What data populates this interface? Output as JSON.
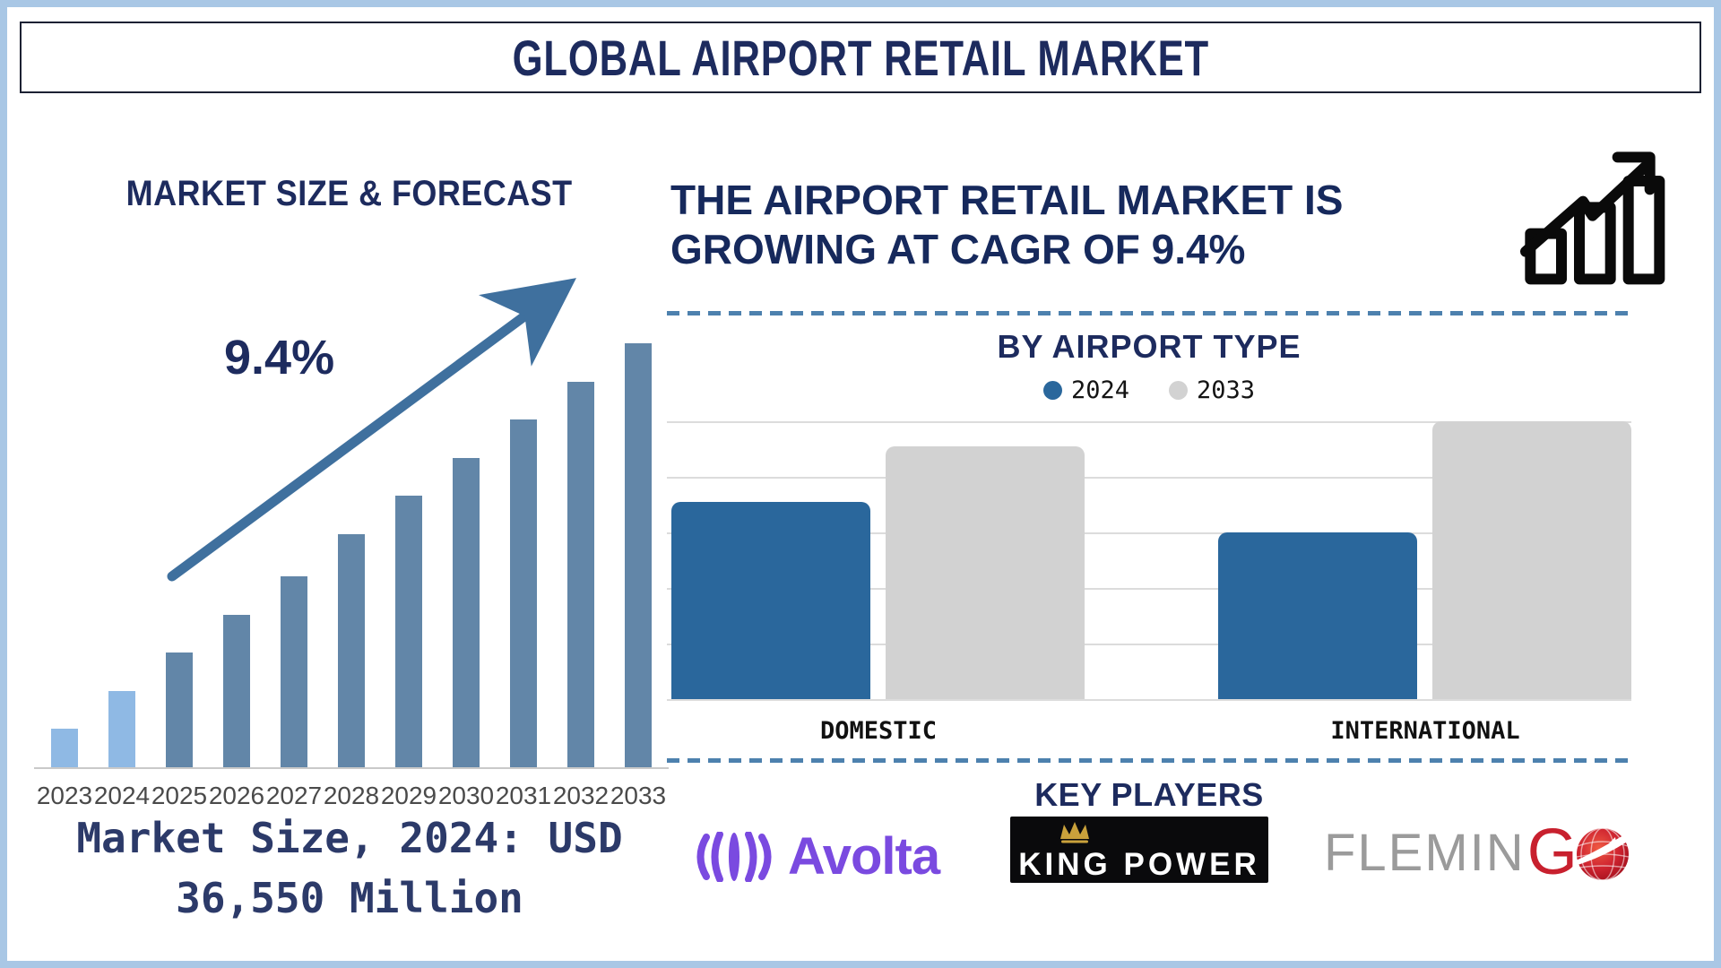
{
  "frame": {
    "border_color": "#a9c7e5"
  },
  "title": "GLOBAL AIRPORT RETAIL MARKET",
  "left_panel": {
    "heading": "MARKET SIZE & FORECAST",
    "cagr_label": "9.4%",
    "market_size_caption_line1": "Market Size, 2024: USD",
    "market_size_caption_line2": "36,550 Million"
  },
  "right_panel": {
    "headline_line1": "THE AIRPORT RETAIL MARKET IS",
    "headline_line2": "GROWING AT CAGR OF 9.4%",
    "section_by_type": {
      "heading": "BY AIRPORT TYPE",
      "legend": [
        {
          "label": "2024",
          "color": "#2a679c"
        },
        {
          "label": "2033",
          "color": "#d2d2d2"
        }
      ]
    },
    "key_players": {
      "heading": "KEY PLAYERS",
      "players": [
        {
          "name": "Avolta",
          "logo_text": "Avolta",
          "color": "#7a4ae0"
        },
        {
          "name": "King Power",
          "logo_text": "KING POWER",
          "bg": "#0a0a0c",
          "text_color": "#ffffff",
          "crown_color": "#c9a13b"
        },
        {
          "name": "Flemingo",
          "logo_text_gray": "FLEMIN",
          "logo_text_red": "G",
          "gray_color": "#9b9b9b",
          "red_color": "#c8202e"
        }
      ]
    }
  },
  "icons": {
    "growth_chart": "growth-bars-arrow-icon",
    "trend_arrow": "cagr-up-arrow-icon",
    "avolta_globe": "avolta-globe-icon",
    "kingpower_crown": "crown-icon",
    "flemingo_globe": "globe-bird-icon"
  },
  "colors": {
    "navy": "#1d2b5e",
    "steel_bar": "#6286a8",
    "light_bar": "#8fb9e4",
    "arrow": "#3f709e",
    "dashed_line": "#4d81ae",
    "year_label": "#4a4a4a"
  },
  "chart_data": [
    {
      "type": "bar",
      "title": "MARKET SIZE & FORECAST",
      "categories": [
        "2023",
        "2024",
        "2025",
        "2026",
        "2027",
        "2028",
        "2029",
        "2030",
        "2031",
        "2032",
        "2033"
      ],
      "values_relative_pct": [
        9,
        18,
        27,
        36,
        45,
        55,
        64,
        73,
        82,
        91,
        100
      ],
      "annotation": "9.4% CAGR trend arrow",
      "known_point": {
        "year": "2024",
        "value": "USD 36,550 Million"
      },
      "bar_colors": {
        "highlight_years": [
          "2023",
          "2024"
        ],
        "highlight": "#8fb9e4",
        "default": "#6286a8"
      },
      "xlabel": "",
      "ylabel": "",
      "axis_note": "no value axis shown; heights increase linearly to 2033 max"
    },
    {
      "type": "bar",
      "title": "BY AIRPORT TYPE",
      "categories": [
        "DOMESTIC",
        "INTERNATIONAL"
      ],
      "series": [
        {
          "name": "2024",
          "color": "#2a679c",
          "values_relative_pct": [
            71,
            60
          ]
        },
        {
          "name": "2033",
          "color": "#d2d2d2",
          "values_relative_pct": [
            91,
            100
          ]
        }
      ],
      "gridlines": 6,
      "legend_position": "top",
      "axis_note": "no value axis shown; values are relative (INTERNATIONAL 2033 = 100)"
    }
  ]
}
